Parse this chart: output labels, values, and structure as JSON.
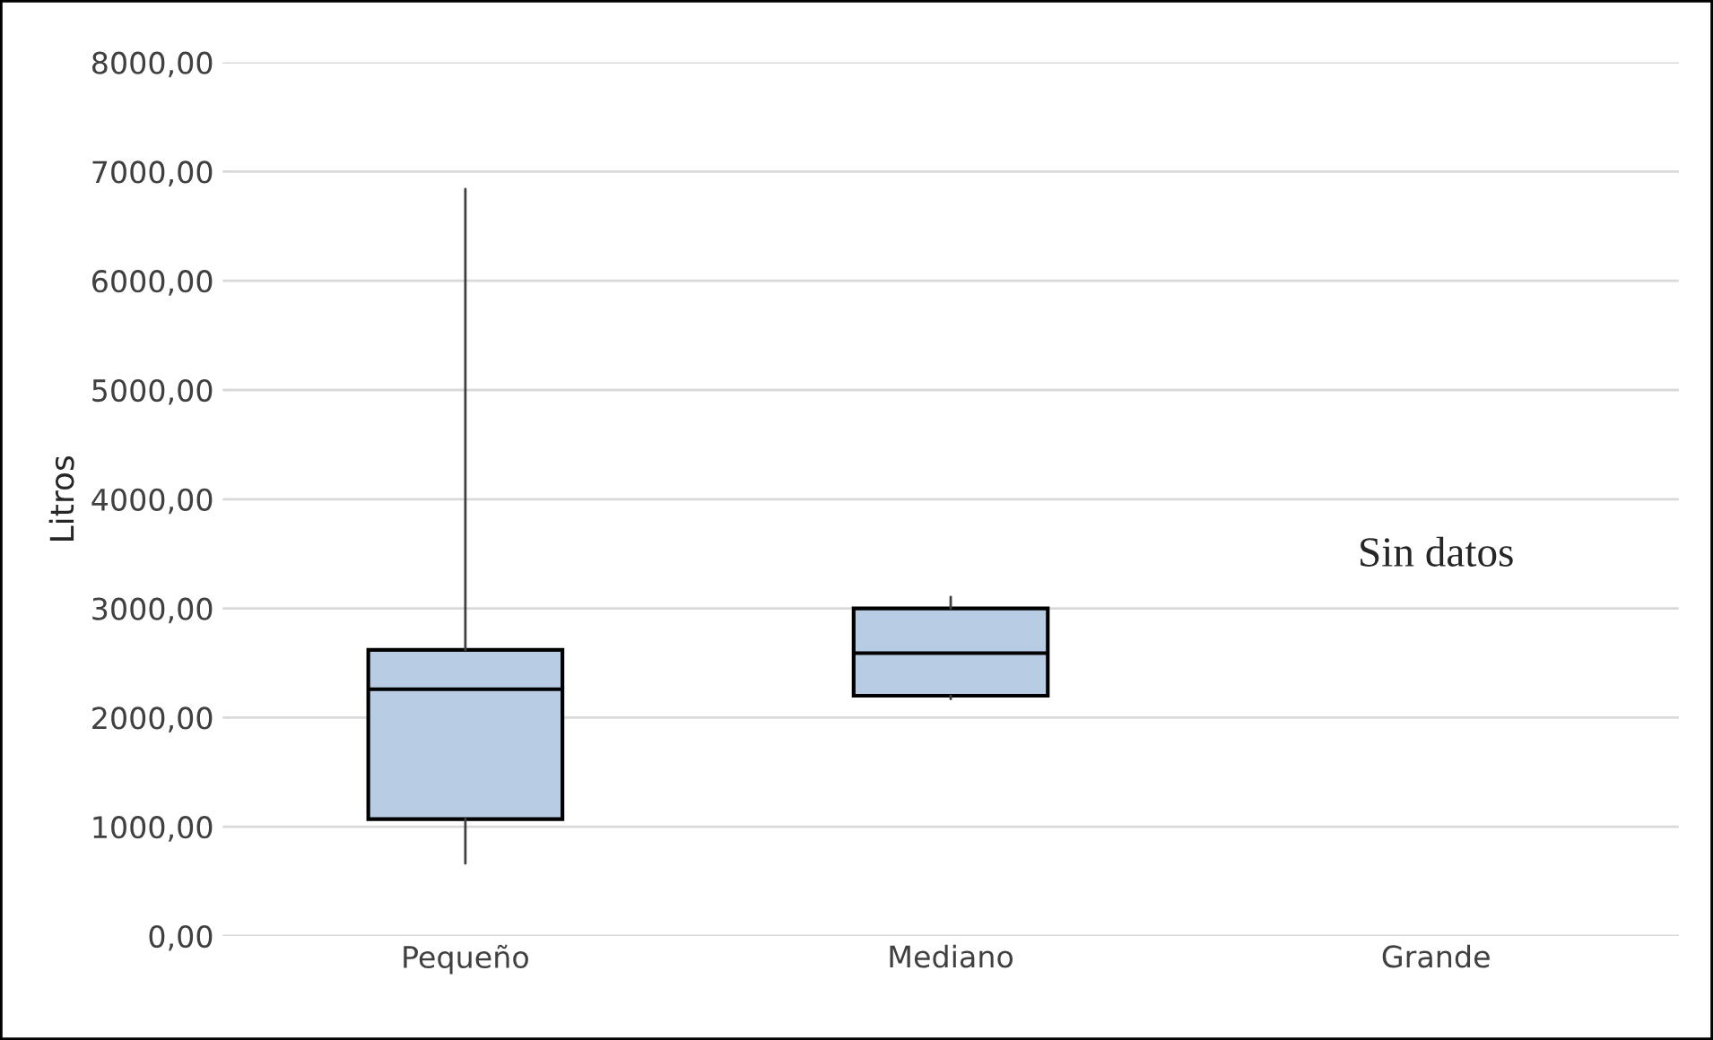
{
  "chart_data": {
    "type": "box",
    "ylabel": "Litros",
    "categories": [
      "Pequeño",
      "Mediano",
      "Grande"
    ],
    "boxes": [
      {
        "low": 665,
        "q1": 1070,
        "median": 2260,
        "q3": 2620,
        "high": 6840
      },
      {
        "low": 2170,
        "q1": 2200,
        "median": 2590,
        "q3": 3000,
        "high": 3105
      },
      null
    ],
    "color": "#b8cce4",
    "ylim": [
      0,
      8000
    ],
    "yticks": [
      {
        "value": 0,
        "label": "0,00"
      },
      {
        "value": 1000,
        "label": "1000,00"
      },
      {
        "value": 2000,
        "label": "2000,00"
      },
      {
        "value": 3000,
        "label": "3000,00"
      },
      {
        "value": 4000,
        "label": "4000,00"
      },
      {
        "value": 5000,
        "label": "5000,00"
      },
      {
        "value": 6000,
        "label": "6000,00"
      },
      {
        "value": 7000,
        "label": "7000,00"
      },
      {
        "value": 8000,
        "label": "8000,00"
      }
    ],
    "grid": "y",
    "annotations": [
      "Sin datos"
    ]
  }
}
